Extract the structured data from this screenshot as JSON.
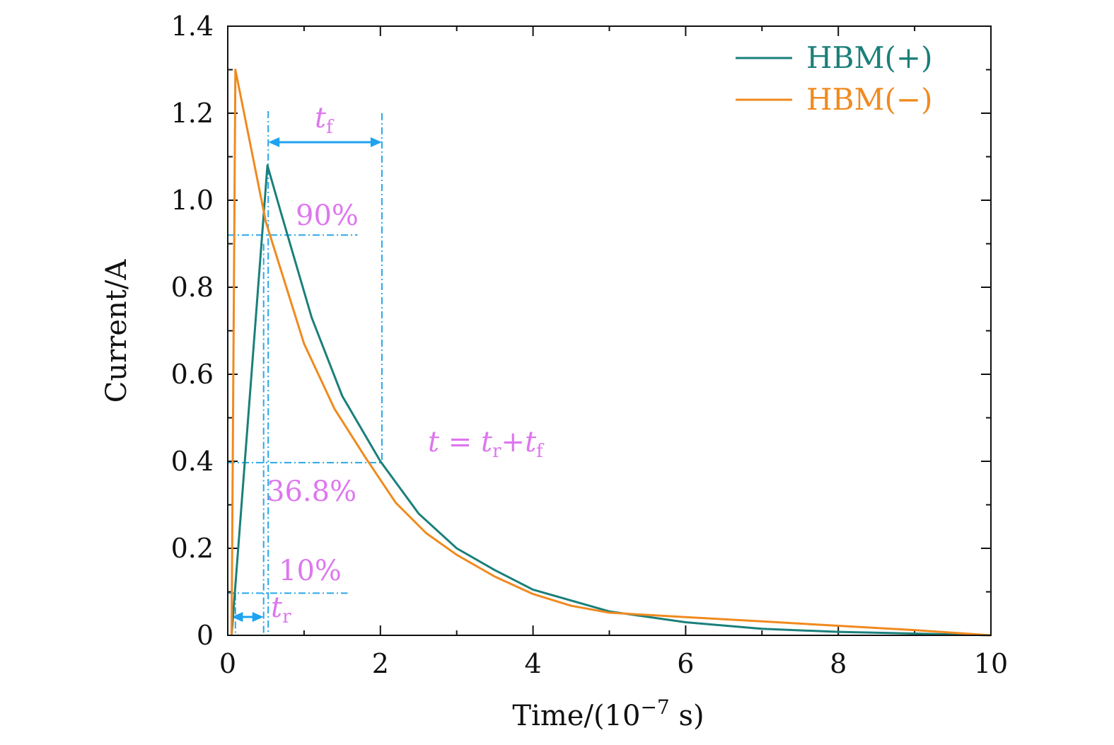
{
  "chart_data": {
    "type": "line",
    "xlabel": "Time/(10",
    "xlabel_exp": "−7",
    "xlabel_tail": " s)",
    "ylabel": "Current/A",
    "xlim": [
      0,
      10
    ],
    "ylim": [
      0,
      1.4
    ],
    "xticks": [
      0,
      2,
      4,
      6,
      8,
      10
    ],
    "xtick_labels": [
      "0",
      "2",
      "4",
      "6",
      "8",
      "10"
    ],
    "yticks": [
      0,
      0.2,
      0.4,
      0.6,
      0.8,
      1.0,
      1.2,
      1.4
    ],
    "ytick_labels": [
      "0",
      "0.2",
      "0.4",
      "0.6",
      "0.8",
      "1.0",
      "1.2",
      "1.4"
    ],
    "grid": false,
    "legend_position": "top-right",
    "series": [
      {
        "name": "HBM(+)",
        "color": "#1a7f7a",
        "x": [
          0.05,
          0.52,
          0.7,
          1.1,
          1.5,
          2.0,
          2.5,
          3.0,
          3.5,
          4.0,
          5.0,
          6.0,
          7.0,
          8.0,
          9.0,
          10.0
        ],
        "y": [
          0.0,
          1.08,
          0.97,
          0.73,
          0.55,
          0.4,
          0.28,
          0.2,
          0.15,
          0.105,
          0.055,
          0.03,
          0.015,
          0.008,
          0.004,
          0.0
        ]
      },
      {
        "name": "HBM(−)",
        "color": "#f08a1e",
        "x": [
          0.05,
          0.1,
          0.5,
          1.0,
          1.4,
          1.8,
          2.2,
          2.6,
          3.0,
          3.5,
          4.0,
          4.5,
          5.0,
          6.0,
          7.0,
          8.0,
          9.0,
          10.0
        ],
        "y": [
          0.0,
          1.3,
          0.95,
          0.67,
          0.52,
          0.41,
          0.305,
          0.235,
          0.185,
          0.135,
          0.095,
          0.068,
          0.052,
          0.042,
          0.032,
          0.022,
          0.012,
          0.0
        ]
      }
    ],
    "annotations": {
      "tf_label": "t",
      "tf_sub": "f",
      "tr_label": "t",
      "tr_sub": "r",
      "p90": "90%",
      "p368": "36.8%",
      "p10": "10%",
      "formula_t": "t",
      "formula_eq": " = ",
      "formula_tr": "t",
      "formula_tr_sub": "r",
      "formula_plus": "+",
      "formula_tf": "t",
      "formula_tf_sub": "f"
    },
    "guides": {
      "level_90": 0.92,
      "level_368": 0.397,
      "level_10": 0.097,
      "x_start": 0.1,
      "x_90": 0.47,
      "x_peak": 0.53,
      "x_368": 2.02,
      "x_90_line_end": 1.7,
      "x_368_line_end": 2.02,
      "x_10_line_end": 1.57
    }
  }
}
